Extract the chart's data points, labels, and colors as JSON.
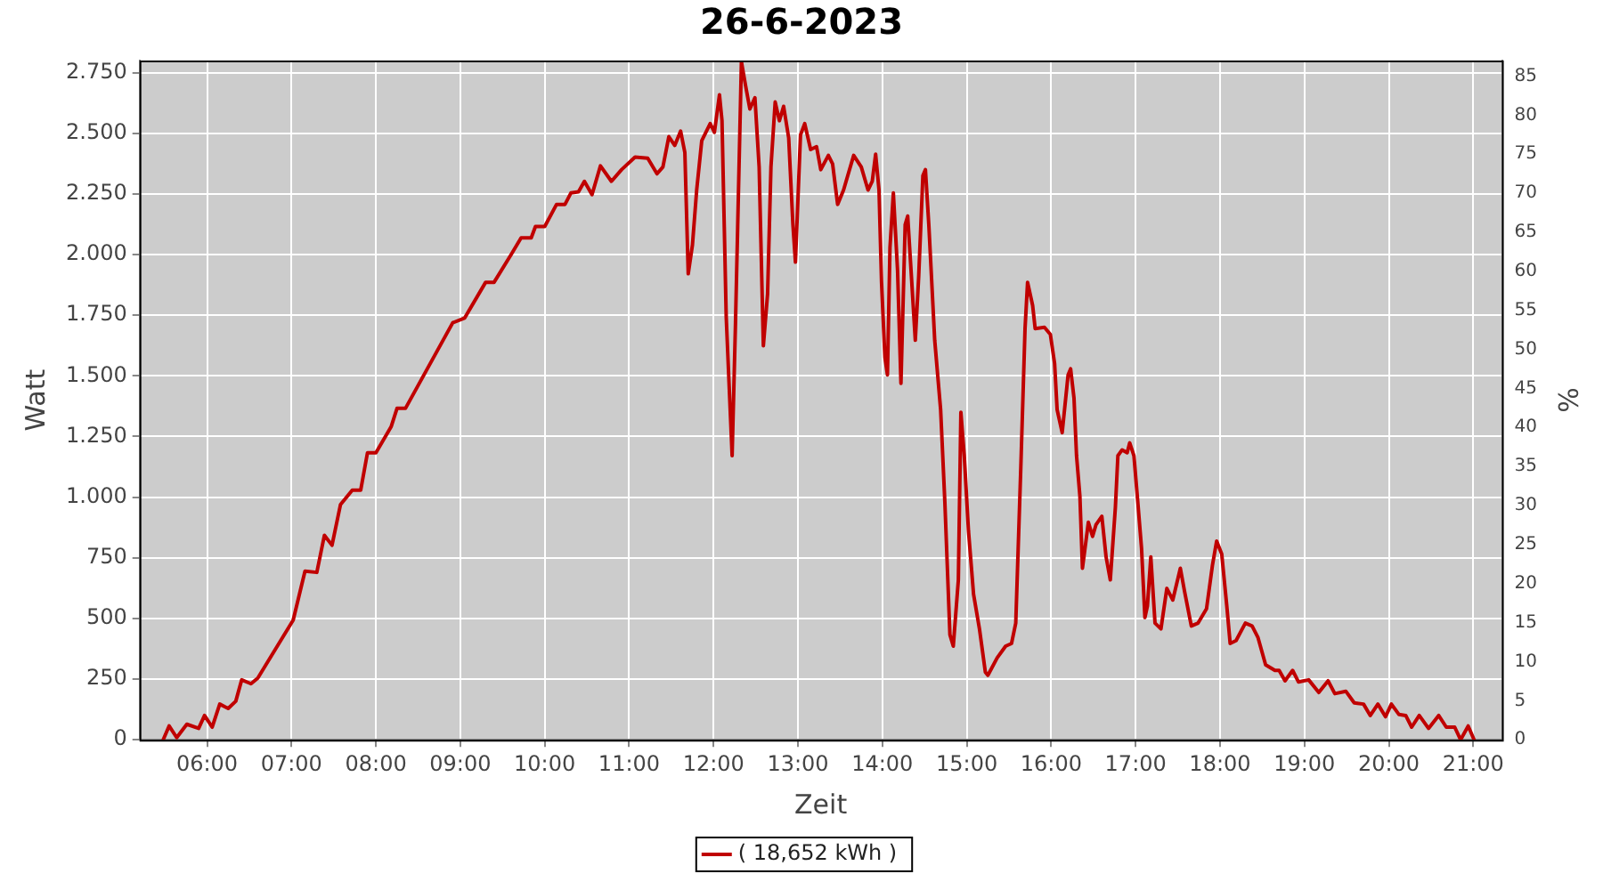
{
  "chart_data": {
    "type": "line",
    "title": "26-6-2023",
    "xlabel": "Zeit",
    "ylabel": "Watt",
    "y2label": "%",
    "xlim": [
      5.2,
      21.34
    ],
    "xticks": [
      {
        "value": 6,
        "label": "06:00"
      },
      {
        "value": 7,
        "label": "07:00"
      },
      {
        "value": 8,
        "label": "08:00"
      },
      {
        "value": 9,
        "label": "09:00"
      },
      {
        "value": 10,
        "label": "10:00"
      },
      {
        "value": 11,
        "label": "11:00"
      },
      {
        "value": 12,
        "label": "12:00"
      },
      {
        "value": 13,
        "label": "13:00"
      },
      {
        "value": 14,
        "label": "14:00"
      },
      {
        "value": 15,
        "label": "15:00"
      },
      {
        "value": 16,
        "label": "16:00"
      },
      {
        "value": 17,
        "label": "17:00"
      },
      {
        "value": 18,
        "label": "18:00"
      },
      {
        "value": 19,
        "label": "19:00"
      },
      {
        "value": 20,
        "label": "20:00"
      },
      {
        "value": 21,
        "label": "21:00"
      }
    ],
    "ylim": [
      0,
      2800
    ],
    "yticks": [
      0,
      250,
      500,
      750,
      {
        "value": 1000,
        "label": "1.000"
      },
      {
        "value": 1250,
        "label": "1.250"
      },
      {
        "value": 1500,
        "label": "1.500"
      },
      {
        "value": 1750,
        "label": "1.750"
      },
      {
        "value": 2000,
        "label": "2.000"
      },
      {
        "value": 2250,
        "label": "2.250"
      },
      {
        "value": 2500,
        "label": "2.500"
      },
      {
        "value": 2750,
        "label": "2.750"
      }
    ],
    "y2lim": [
      0,
      87
    ],
    "y2ticks": [
      0,
      5,
      10,
      15,
      20,
      25,
      30,
      35,
      40,
      45,
      50,
      55,
      60,
      65,
      70,
      75,
      80,
      85
    ],
    "grid": true,
    "legend": "bottom",
    "marker": "none",
    "line_style": "solid",
    "series": [
      {
        "name": "( 18,652 kWh )",
        "color": "#c00000",
        "x": [
          5.48,
          5.55,
          5.64,
          5.76,
          5.9,
          5.97,
          6.06,
          6.15,
          6.25,
          6.34,
          6.41,
          6.52,
          6.6,
          7.02,
          7.16,
          7.3,
          7.39,
          7.48,
          7.58,
          7.72,
          7.82,
          7.9,
          8.0,
          8.18,
          8.25,
          8.35,
          8.91,
          9.05,
          9.3,
          9.4,
          9.61,
          9.72,
          9.84,
          9.89,
          10.0,
          10.14,
          10.24,
          10.31,
          10.4,
          10.47,
          10.56,
          10.66,
          10.79,
          10.91,
          11.07,
          11.22,
          11.33,
          11.4,
          11.47,
          11.54,
          11.61,
          11.66,
          11.7,
          11.75,
          11.8,
          11.86,
          11.96,
          12.01,
          12.07,
          12.1,
          12.15,
          12.22,
          12.26,
          12.33,
          12.38,
          12.43,
          12.49,
          12.54,
          12.59,
          12.64,
          12.68,
          12.73,
          12.78,
          12.83,
          12.89,
          12.94,
          12.97,
          13.03,
          13.08,
          13.15,
          13.22,
          13.27,
          13.36,
          13.41,
          13.47,
          13.54,
          13.66,
          13.75,
          13.83,
          13.88,
          13.92,
          13.96,
          13.99,
          14.03,
          14.06,
          14.09,
          14.13,
          14.18,
          14.22,
          14.27,
          14.3,
          14.34,
          14.39,
          14.43,
          14.48,
          14.51,
          14.55,
          14.62,
          14.69,
          14.74,
          14.8,
          14.84,
          14.9,
          14.93,
          14.97,
          15.02,
          15.08,
          15.15,
          15.22,
          15.25,
          15.36,
          15.46,
          15.53,
          15.58,
          15.64,
          15.69,
          15.72,
          15.78,
          15.81,
          15.92,
          15.99,
          16.04,
          16.07,
          16.13,
          16.2,
          16.23,
          16.27,
          16.3,
          16.34,
          16.37,
          16.41,
          16.44,
          16.49,
          16.53,
          16.6,
          16.65,
          16.7,
          16.76,
          16.79,
          16.84,
          16.9,
          16.93,
          16.98,
          17.02,
          17.07,
          17.11,
          17.14,
          17.18,
          17.23,
          17.3,
          17.37,
          17.44,
          17.53,
          17.58,
          17.66,
          17.74,
          17.84,
          17.91,
          17.96,
          18.02,
          18.08,
          18.12,
          18.19,
          18.3,
          18.38,
          18.45,
          18.54,
          18.65,
          18.7,
          18.77,
          18.86,
          18.93,
          19.05,
          19.17,
          19.28,
          19.36,
          19.49,
          19.59,
          19.7,
          19.78,
          19.87,
          19.96,
          20.03,
          20.12,
          20.2,
          20.27,
          20.36,
          20.47,
          20.59,
          20.68,
          20.78,
          20.85,
          20.94,
          21.01
        ],
        "values": [
          0,
          57,
          9,
          64,
          47,
          100,
          52,
          147,
          129,
          159,
          247,
          231,
          254,
          493,
          695,
          690,
          843,
          802,
          969,
          1029,
          1029,
          1183,
          1183,
          1290,
          1366,
          1366,
          1719,
          1738,
          1886,
          1886,
          2005,
          2069,
          2069,
          2116,
          2116,
          2207,
          2207,
          2254,
          2259,
          2302,
          2247,
          2366,
          2302,
          2350,
          2402,
          2397,
          2333,
          2361,
          2486,
          2450,
          2509,
          2421,
          1921,
          2040,
          2266,
          2469,
          2540,
          2504,
          2659,
          2552,
          1743,
          1171,
          1719,
          2795,
          2695,
          2600,
          2647,
          2361,
          1624,
          1838,
          2361,
          2629,
          2552,
          2611,
          2481,
          2124,
          1969,
          2493,
          2540,
          2433,
          2445,
          2350,
          2409,
          2374,
          2207,
          2266,
          2409,
          2361,
          2266,
          2302,
          2414,
          2266,
          1886,
          1576,
          1504,
          2029,
          2254,
          1933,
          1469,
          2124,
          2159,
          1933,
          1647,
          1909,
          2326,
          2350,
          2124,
          1647,
          1361,
          981,
          433,
          386,
          659,
          1350,
          1171,
          861,
          600,
          457,
          279,
          266,
          338,
          386,
          397,
          481,
          1124,
          1695,
          1886,
          1790,
          1695,
          1700,
          1671,
          1552,
          1361,
          1266,
          1504,
          1529,
          1409,
          1171,
          1004,
          707,
          814,
          897,
          838,
          886,
          921,
          754,
          659,
          957,
          1171,
          1195,
          1183,
          1224,
          1171,
          1004,
          790,
          504,
          552,
          754,
          481,
          457,
          624,
          576,
          707,
          611,
          469,
          481,
          540,
          719,
          819,
          766,
          552,
          397,
          409,
          481,
          469,
          421,
          309,
          286,
          286,
          243,
          286,
          238,
          247,
          195,
          243,
          190,
          200,
          152,
          147,
          100,
          147,
          95,
          147,
          104,
          100,
          52,
          100,
          47,
          100,
          52,
          52,
          0,
          57,
          0
        ]
      }
    ]
  }
}
